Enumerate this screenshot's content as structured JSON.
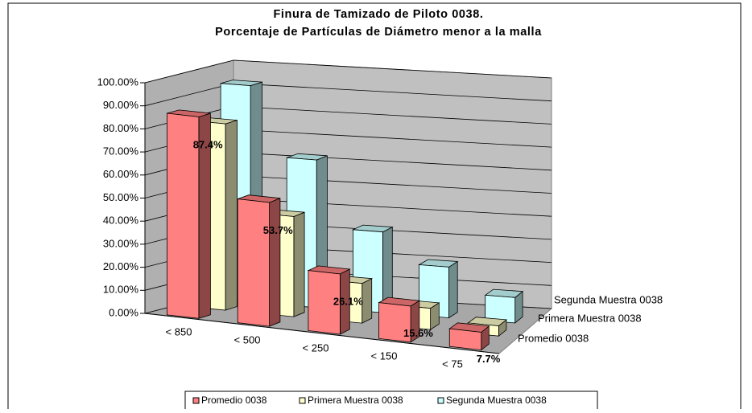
{
  "chart_data": {
    "type": "bar3d",
    "title": "Finura de Tamizado de Piloto 0038.",
    "subtitle": "Porcentaje de Partículas de Diámetro menor a la malla",
    "categories": [
      "< 850",
      "< 500",
      "< 250",
      "< 150",
      "< 75"
    ],
    "series": [
      {
        "name": "Promedio 0038",
        "color": "#ff8080",
        "values": [
          87.4,
          53.7,
          26.1,
          15.6,
          7.7
        ],
        "value_labels": [
          "87.4%",
          "53.7%",
          "26.1%",
          "15.6%",
          "7.7%"
        ]
      },
      {
        "name": "Primera Muestra 0038",
        "color": "#ffffcc",
        "values": [
          80.8,
          43.4,
          17.2,
          9.2,
          4.4
        ]
      },
      {
        "name": "Segunda Muestra 0038",
        "color": "#ccffff",
        "values": [
          94.0,
          64.0,
          35.0,
          22.0,
          11.0
        ]
      }
    ],
    "ylim": [
      0,
      100
    ],
    "yticks": [
      {
        "value": 0,
        "label": "0.00%"
      },
      {
        "value": 10,
        "label": "10.00%"
      },
      {
        "value": 20,
        "label": "20.00%"
      },
      {
        "value": 30,
        "label": "30.00%"
      },
      {
        "value": 40,
        "label": "40.00%"
      },
      {
        "value": 50,
        "label": "50.00%"
      },
      {
        "value": 60,
        "label": "60.00%"
      },
      {
        "value": 70,
        "label": "70.00%"
      },
      {
        "value": 80,
        "label": "80.00%"
      },
      {
        "value": 90,
        "label": "90.00%"
      },
      {
        "value": 100,
        "label": "100.00%"
      }
    ],
    "grid": true,
    "legend": "bottom"
  }
}
